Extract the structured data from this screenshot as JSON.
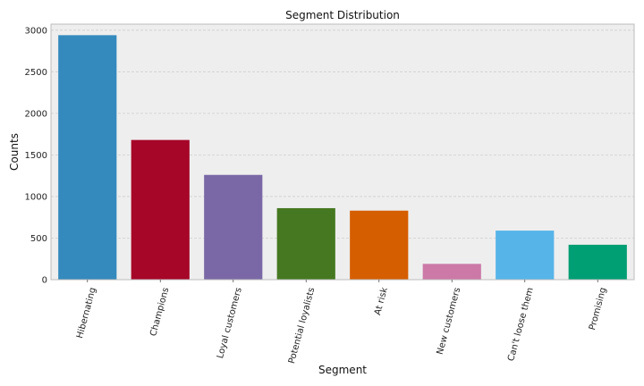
{
  "chart_data": {
    "type": "bar",
    "title": "Segment Distribution",
    "xlabel": "Segment",
    "ylabel": "Counts",
    "categories": [
      "Hibernating",
      "Champions",
      "Loyal customers",
      "Potential loyalists",
      "At risk",
      "New customers",
      "Can't loose them",
      "Promising"
    ],
    "values": [
      2940,
      1680,
      1260,
      860,
      830,
      190,
      590,
      420
    ],
    "colors": [
      "#348ABD",
      "#A60628",
      "#7A68A6",
      "#467821",
      "#D55E00",
      "#CC79A7",
      "#56B4E9",
      "#009E73"
    ],
    "yticks": [
      0,
      500,
      1000,
      1500,
      2000,
      2500,
      3000
    ],
    "ylim": [
      0,
      3000
    ],
    "grid": true
  }
}
